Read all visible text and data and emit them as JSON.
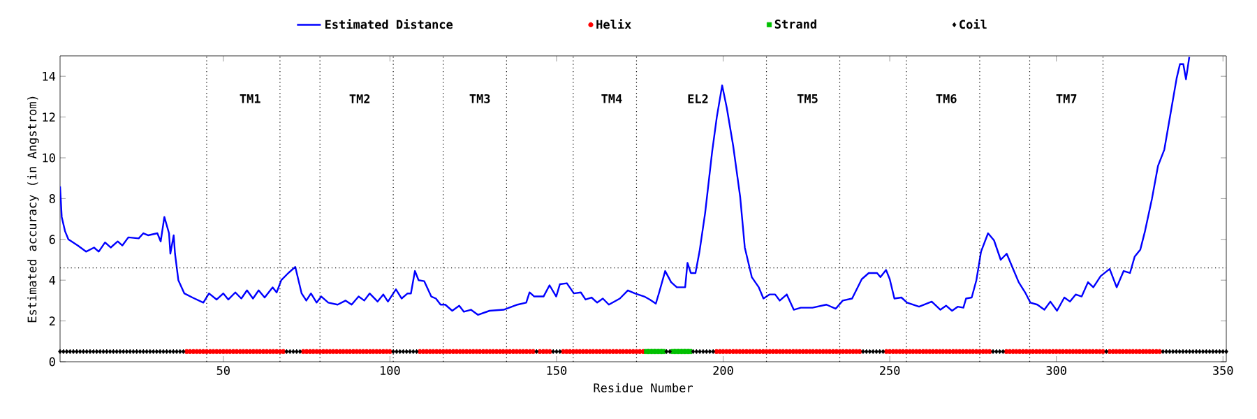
{
  "chart_data": {
    "type": "line",
    "xlabel": "Residue Number",
    "ylabel": "Estimated accuracy (in Angstrom)",
    "xlim": [
      1,
      351
    ],
    "ylim": [
      0,
      15
    ],
    "xticks": [
      50,
      100,
      150,
      200,
      250,
      300,
      350
    ],
    "yticks": [
      0,
      2,
      4,
      6,
      8,
      10,
      12,
      14
    ],
    "grid": false,
    "legend": "top",
    "series": [
      {
        "name": "Estimated Distance",
        "color": "#0000ff",
        "marker": "none",
        "line_style": "solid",
        "x": [
          1,
          1.5,
          2.5,
          3.5,
          6.3,
          8.8,
          11.2,
          12.6,
          14.5,
          16.2,
          18.3,
          19.7,
          21.5,
          24.6,
          26,
          27.4,
          30.2,
          31.2,
          32.3,
          33.7,
          34.1,
          35.1,
          35.5,
          36.5,
          38.3,
          40.7,
          44,
          45.7,
          48,
          50,
          51.5,
          53.6,
          55.4,
          57.1,
          58.9,
          60.6,
          62.4,
          64.8,
          66,
          67.4,
          69.5,
          71.6,
          73.5,
          74.9,
          76.3,
          78,
          79.4,
          81.5,
          84.3,
          86.7,
          88.5,
          90.6,
          92.3,
          93.9,
          96.3,
          98,
          99.4,
          101.8,
          103.5,
          105.3,
          106.3,
          107.5,
          108.6,
          110.3,
          112.4,
          113.8,
          115.2,
          116.6,
          118.7,
          120.8,
          122.2,
          124.3,
          126.4,
          129.9,
          134.1,
          138.3,
          140.9,
          141.9,
          143.3,
          146.1,
          147.9,
          149.9,
          151,
          153.1,
          155.2,
          157.3,
          158.7,
          160.5,
          162.2,
          163.9,
          165.7,
          169,
          171.4,
          173.5,
          176.3,
          178,
          179.8,
          180.8,
          182.6,
          184.4,
          186.1,
          188.6,
          189.3,
          190.3,
          191.7,
          192.9,
          194.6,
          196.7,
          198.1,
          199.7,
          201.1,
          203,
          205.1,
          206.5,
          208.6,
          210.7,
          212.1,
          213.9,
          215.6,
          217,
          219.1,
          221.2,
          223.3,
          226.8,
          231,
          233.8,
          235.9,
          238.7,
          241.6,
          243.7,
          246.2,
          247.2,
          248.9,
          250,
          251.4,
          253.5,
          255.2,
          258.8,
          262.6,
          265.2,
          266.9,
          268.7,
          270.4,
          272.1,
          272.9,
          274.6,
          276,
          277.4,
          279.5,
          281.3,
          283.3,
          285.1,
          286.9,
          288.7,
          290.8,
          292.2,
          294.3,
          296.4,
          298.2,
          300.2,
          302.4,
          304.1,
          305.8,
          307.6,
          309.5,
          311.1,
          313.3,
          316,
          318.1,
          320.2,
          322.1,
          323.5,
          325.2,
          326.6,
          328.7,
          330.5,
          332.4,
          334.3,
          336.1,
          337.1,
          338.1,
          338.9,
          339.9
        ],
        "values": [
          8.6,
          7.1,
          6.4,
          6.0,
          5.7,
          5.4,
          5.6,
          5.4,
          5.85,
          5.6,
          5.9,
          5.7,
          6.1,
          6.05,
          6.3,
          6.2,
          6.3,
          5.9,
          7.1,
          6.3,
          5.3,
          6.2,
          5.3,
          4.0,
          3.35,
          3.15,
          2.9,
          3.35,
          3.05,
          3.35,
          3.05,
          3.4,
          3.1,
          3.5,
          3.1,
          3.5,
          3.15,
          3.65,
          3.4,
          4.0,
          4.35,
          4.65,
          3.35,
          3.0,
          3.35,
          2.9,
          3.2,
          2.9,
          2.8,
          3.0,
          2.8,
          3.2,
          3.0,
          3.35,
          2.95,
          3.3,
          2.95,
          3.55,
          3.1,
          3.35,
          3.35,
          4.45,
          4.0,
          3.95,
          3.2,
          3.1,
          2.8,
          2.8,
          2.5,
          2.75,
          2.45,
          2.55,
          2.3,
          2.5,
          2.55,
          2.8,
          2.9,
          3.4,
          3.2,
          3.2,
          3.75,
          3.2,
          3.8,
          3.85,
          3.35,
          3.4,
          3.05,
          3.15,
          2.9,
          3.1,
          2.8,
          3.1,
          3.5,
          3.35,
          3.2,
          3.05,
          2.85,
          3.4,
          4.45,
          3.9,
          3.65,
          3.65,
          4.85,
          4.35,
          4.35,
          5.4,
          7.3,
          10.3,
          12.0,
          13.55,
          12.45,
          10.6,
          8.1,
          5.6,
          4.15,
          3.65,
          3.1,
          3.3,
          3.3,
          3.0,
          3.3,
          2.55,
          2.65,
          2.65,
          2.8,
          2.6,
          3.0,
          3.1,
          4.05,
          4.35,
          4.35,
          4.15,
          4.5,
          4.05,
          3.1,
          3.15,
          2.9,
          2.7,
          2.95,
          2.55,
          2.75,
          2.5,
          2.7,
          2.65,
          3.1,
          3.15,
          4.0,
          5.4,
          6.3,
          5.95,
          5.0,
          5.3,
          4.6,
          3.9,
          3.35,
          2.9,
          2.8,
          2.55,
          2.95,
          2.5,
          3.15,
          2.95,
          3.3,
          3.2,
          3.9,
          3.65,
          4.2,
          4.55,
          3.65,
          4.45,
          4.35,
          5.15,
          5.5,
          6.4,
          8.0,
          9.6,
          10.4,
          12.2,
          13.9,
          14.6,
          14.6,
          13.85,
          14.95
        ]
      },
      {
        "name": "Helix",
        "type": "scatter",
        "color": "#ff0000",
        "marker": "circle",
        "x": [
          39,
          40,
          41,
          42,
          43,
          44,
          45,
          46,
          47,
          48,
          49,
          50,
          51,
          52,
          53,
          54,
          55,
          56,
          57,
          58,
          59,
          60,
          61,
          62,
          63,
          64,
          65,
          66,
          67,
          68,
          74,
          75,
          76,
          77,
          78,
          79,
          80,
          81,
          82,
          83,
          84,
          85,
          86,
          87,
          88,
          89,
          90,
          91,
          92,
          93,
          94,
          95,
          96,
          97,
          98,
          99,
          100,
          109,
          110,
          111,
          112,
          113,
          114,
          115,
          116,
          117,
          118,
          119,
          120,
          121,
          122,
          123,
          124,
          125,
          126,
          127,
          128,
          129,
          130,
          131,
          132,
          133,
          134,
          135,
          136,
          137,
          138,
          139,
          140,
          141,
          142,
          143,
          145,
          146,
          147,
          148,
          152,
          153,
          154,
          155,
          156,
          157,
          158,
          159,
          160,
          161,
          162,
          163,
          164,
          165,
          166,
          167,
          168,
          169,
          170,
          171,
          172,
          173,
          174,
          175,
          176,
          198,
          199,
          200,
          201,
          202,
          203,
          204,
          205,
          206,
          207,
          208,
          209,
          210,
          211,
          212,
          213,
          214,
          215,
          216,
          217,
          218,
          219,
          220,
          221,
          222,
          223,
          224,
          225,
          226,
          227,
          228,
          229,
          230,
          231,
          232,
          233,
          234,
          235,
          236,
          237,
          238,
          239,
          240,
          241,
          249,
          250,
          251,
          252,
          253,
          254,
          255,
          256,
          257,
          258,
          259,
          260,
          261,
          262,
          263,
          264,
          265,
          266,
          267,
          268,
          269,
          270,
          271,
          272,
          273,
          274,
          275,
          276,
          277,
          278,
          279,
          280,
          285,
          286,
          287,
          288,
          289,
          290,
          291,
          292,
          293,
          294,
          295,
          296,
          297,
          298,
          299,
          300,
          301,
          302,
          303,
          304,
          305,
          306,
          307,
          308,
          309,
          310,
          311,
          312,
          313,
          314,
          316,
          317,
          318,
          319,
          320,
          321,
          322,
          323,
          324,
          325,
          326,
          327,
          328,
          329,
          330,
          331
        ],
        "values": [
          0.5,
          0.5,
          0.5,
          0.5,
          0.5,
          0.5,
          0.5,
          0.5,
          0.5,
          0.5,
          0.5,
          0.5,
          0.5,
          0.5,
          0.5,
          0.5,
          0.5,
          0.5,
          0.5,
          0.5,
          0.5,
          0.5,
          0.5,
          0.5,
          0.5,
          0.5,
          0.5,
          0.5,
          0.5,
          0.5,
          0.5,
          0.5,
          0.5,
          0.5,
          0.5,
          0.5,
          0.5,
          0.5,
          0.5,
          0.5,
          0.5,
          0.5,
          0.5,
          0.5,
          0.5,
          0.5,
          0.5,
          0.5,
          0.5,
          0.5,
          0.5,
          0.5,
          0.5,
          0.5,
          0.5,
          0.5,
          0.5,
          0.5,
          0.5,
          0.5,
          0.5,
          0.5,
          0.5,
          0.5,
          0.5,
          0.5,
          0.5,
          0.5,
          0.5,
          0.5,
          0.5,
          0.5,
          0.5,
          0.5,
          0.5,
          0.5,
          0.5,
          0.5,
          0.5,
          0.5,
          0.5,
          0.5,
          0.5,
          0.5,
          0.5,
          0.5,
          0.5,
          0.5,
          0.5,
          0.5,
          0.5,
          0.5,
          0.5,
          0.5,
          0.5,
          0.5,
          0.5,
          0.5,
          0.5,
          0.5,
          0.5,
          0.5,
          0.5,
          0.5,
          0.5,
          0.5,
          0.5,
          0.5,
          0.5,
          0.5,
          0.5,
          0.5,
          0.5,
          0.5,
          0.5,
          0.5,
          0.5,
          0.5,
          0.5,
          0.5,
          0.5,
          0.5,
          0.5,
          0.5,
          0.5,
          0.5,
          0.5,
          0.5,
          0.5,
          0.5,
          0.5,
          0.5,
          0.5,
          0.5,
          0.5,
          0.5,
          0.5,
          0.5,
          0.5,
          0.5,
          0.5,
          0.5,
          0.5,
          0.5,
          0.5,
          0.5,
          0.5,
          0.5,
          0.5,
          0.5,
          0.5,
          0.5,
          0.5,
          0.5,
          0.5,
          0.5,
          0.5,
          0.5,
          0.5,
          0.5,
          0.5,
          0.5,
          0.5,
          0.5,
          0.5,
          0.5,
          0.5,
          0.5,
          0.5,
          0.5,
          0.5,
          0.5,
          0.5,
          0.5,
          0.5,
          0.5,
          0.5,
          0.5,
          0.5,
          0.5,
          0.5,
          0.5,
          0.5,
          0.5,
          0.5,
          0.5,
          0.5,
          0.5,
          0.5,
          0.5,
          0.5,
          0.5,
          0.5,
          0.5,
          0.5,
          0.5,
          0.5,
          0.5,
          0.5,
          0.5,
          0.5,
          0.5,
          0.5,
          0.5,
          0.5,
          0.5,
          0.5,
          0.5,
          0.5,
          0.5,
          0.5,
          0.5,
          0.5,
          0.5,
          0.5,
          0.5,
          0.5,
          0.5,
          0.5,
          0.5,
          0.5,
          0.5,
          0.5,
          0.5,
          0.5,
          0.5,
          0.5,
          0.5,
          0.5,
          0.5,
          0.5,
          0.5,
          0.5,
          0.5,
          0.5,
          0.5,
          0.5,
          0.5,
          0.5,
          0.5,
          0.5,
          0.5,
          0.5
        ]
      },
      {
        "name": "Strand",
        "type": "scatter",
        "color": "#00c000",
        "marker": "square",
        "x": [
          177,
          178,
          179,
          180,
          181,
          182,
          185,
          186,
          187,
          188,
          189,
          190
        ],
        "values": [
          0.5,
          0.5,
          0.5,
          0.5,
          0.5,
          0.5,
          0.5,
          0.5,
          0.5,
          0.5,
          0.5,
          0.5
        ]
      },
      {
        "name": "Coil",
        "type": "scatter",
        "color": "#000000",
        "marker": "diamond",
        "x": [
          1,
          2,
          3,
          4,
          5,
          6,
          7,
          8,
          9,
          10,
          11,
          12,
          13,
          14,
          15,
          16,
          17,
          18,
          19,
          20,
          21,
          22,
          23,
          24,
          25,
          26,
          27,
          28,
          29,
          30,
          31,
          32,
          33,
          34,
          35,
          36,
          37,
          38,
          69,
          70,
          71,
          72,
          73,
          101,
          102,
          103,
          104,
          105,
          106,
          107,
          108,
          144,
          149,
          150,
          151,
          183,
          184,
          191,
          192,
          193,
          194,
          195,
          196,
          197,
          242,
          243,
          244,
          245,
          246,
          247,
          248,
          281,
          282,
          283,
          284,
          315,
          332,
          333,
          334,
          335,
          336,
          337,
          338,
          339,
          340,
          341,
          342,
          343,
          344,
          345,
          346,
          347,
          348,
          349,
          350,
          351
        ],
        "values": [
          0.5,
          0.5,
          0.5,
          0.5,
          0.5,
          0.5,
          0.5,
          0.5,
          0.5,
          0.5,
          0.5,
          0.5,
          0.5,
          0.5,
          0.5,
          0.5,
          0.5,
          0.5,
          0.5,
          0.5,
          0.5,
          0.5,
          0.5,
          0.5,
          0.5,
          0.5,
          0.5,
          0.5,
          0.5,
          0.5,
          0.5,
          0.5,
          0.5,
          0.5,
          0.5,
          0.5,
          0.5,
          0.5,
          0.5,
          0.5,
          0.5,
          0.5,
          0.5,
          0.5,
          0.5,
          0.5,
          0.5,
          0.5,
          0.5,
          0.5,
          0.5,
          0.5,
          0.5,
          0.5,
          0.5,
          0.5,
          0.5,
          0.5,
          0.5,
          0.5,
          0.5,
          0.5,
          0.5,
          0.5,
          0.5,
          0.5,
          0.5,
          0.5,
          0.5,
          0.5,
          0.5,
          0.5,
          0.5,
          0.5,
          0.5,
          0.5,
          0.5,
          0.5,
          0.5,
          0.5,
          0.5,
          0.5,
          0.5,
          0.5,
          0.5,
          0.5,
          0.5,
          0.5,
          0.5,
          0.5,
          0.5,
          0.5,
          0.5,
          0.5,
          0.5,
          0.5
        ]
      }
    ],
    "ref_lines": [
      {
        "axis": "x",
        "value": 45,
        "line_style": "dotted",
        "color": "#000000"
      },
      {
        "axis": "x",
        "value": 67,
        "line_style": "dotted",
        "color": "#000000"
      },
      {
        "axis": "x",
        "value": 79,
        "line_style": "dotted",
        "color": "#000000"
      },
      {
        "axis": "x",
        "value": 101,
        "line_style": "dotted",
        "color": "#000000"
      },
      {
        "axis": "x",
        "value": 116,
        "line_style": "dotted",
        "color": "#000000"
      },
      {
        "axis": "x",
        "value": 135,
        "line_style": "dotted",
        "color": "#000000"
      },
      {
        "axis": "x",
        "value": 155,
        "line_style": "dotted",
        "color": "#000000"
      },
      {
        "axis": "x",
        "value": 174,
        "line_style": "dotted",
        "color": "#000000"
      },
      {
        "axis": "x",
        "value": 213,
        "line_style": "dotted",
        "color": "#000000"
      },
      {
        "axis": "x",
        "value": 235,
        "line_style": "dotted",
        "color": "#000000"
      },
      {
        "axis": "x",
        "value": 255,
        "line_style": "dotted",
        "color": "#000000"
      },
      {
        "axis": "x",
        "value": 277,
        "line_style": "dotted",
        "color": "#000000"
      },
      {
        "axis": "x",
        "value": 292,
        "line_style": "dotted",
        "color": "#000000"
      },
      {
        "axis": "x",
        "value": 314,
        "line_style": "dotted",
        "color": "#000000"
      },
      {
        "axis": "y",
        "value": 4.6,
        "line_style": "dotted",
        "color": "#000000"
      }
    ],
    "annotations": [
      "TM1",
      "TM2",
      "TM3",
      "TM4",
      "EL2",
      "TM5",
      "TM6",
      "TM7"
    ]
  }
}
